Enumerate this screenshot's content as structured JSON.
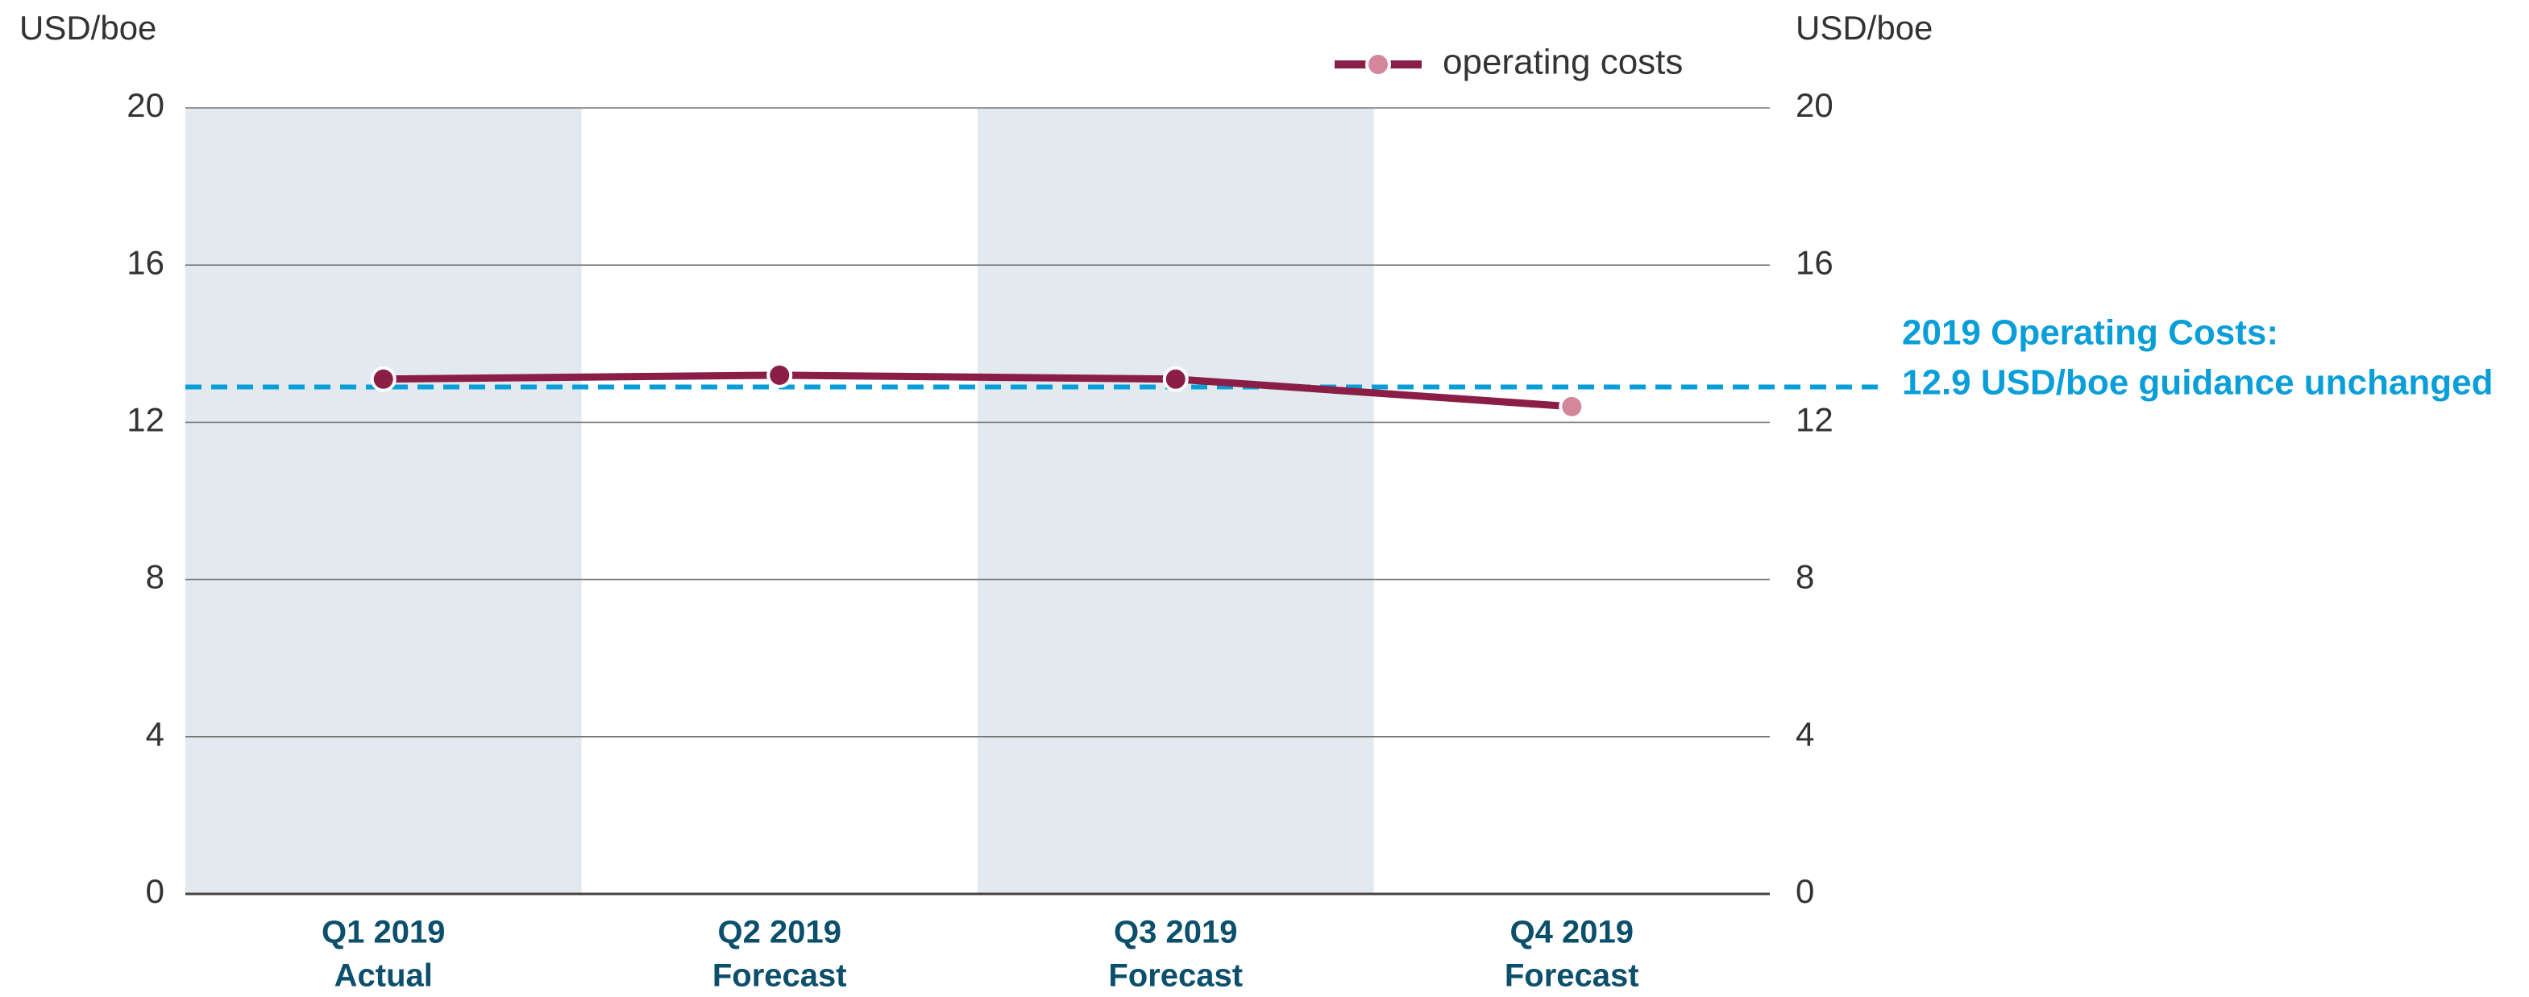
{
  "chart_data": {
    "type": "line",
    "y_label": "USD/boe",
    "y2_label": "USD/boe",
    "categories": [
      [
        "Q1 2019",
        "Actual"
      ],
      [
        "Q2 2019",
        "Forecast"
      ],
      [
        "Q3 2019",
        "Forecast"
      ],
      [
        "Q4 2019",
        "Forecast"
      ]
    ],
    "series": [
      {
        "name": "operating costs",
        "color": "#8b1e46",
        "marker_colors": [
          "#8b1e46",
          "#8b1e46",
          "#8b1e46",
          "#d4879b"
        ],
        "values": [
          13.1,
          13.2,
          13.1,
          12.4
        ]
      }
    ],
    "ylim": [
      0,
      20
    ],
    "yticks": [
      0,
      4,
      8,
      12,
      16,
      20
    ],
    "y2lim": [
      0,
      20
    ],
    "y2ticks": [
      0,
      4,
      8,
      12,
      16,
      20
    ],
    "grid": true,
    "reference_line": {
      "value": 12.9,
      "color": "#0a9ed9",
      "label": [
        "2019 Operating Costs:",
        "12.9 USD/boe guidance unchanged"
      ]
    }
  }
}
